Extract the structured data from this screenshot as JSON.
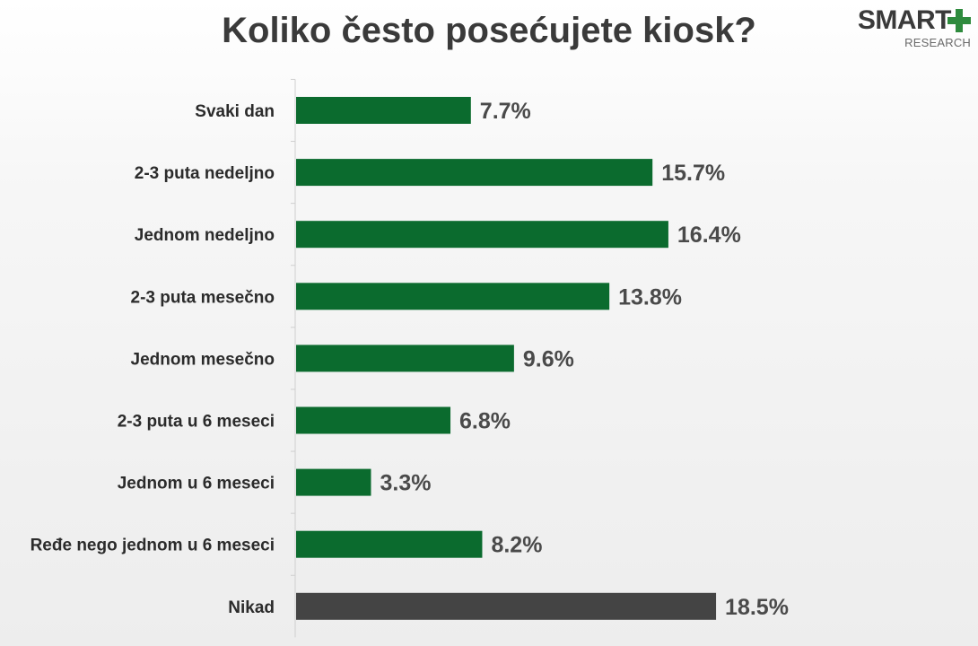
{
  "title": "Koliko često posećujete kiosk?",
  "logo": {
    "main": "SMART",
    "sub": "RESEARCH",
    "plus_color": "#2e8b3d"
  },
  "chart_data": {
    "type": "bar",
    "orientation": "horizontal",
    "title": "Koliko često posećujete kiosk?",
    "categories": [
      "Svaki dan",
      "2-3 puta nedeljno",
      "Jednom nedeljno",
      "2-3 puta mesečno",
      "Jednom mesečno",
      "2-3 puta u 6 meseci",
      "Jednom u 6 meseci",
      "Ređe nego jednom u 6 meseci",
      "Nikad"
    ],
    "values": [
      7.7,
      15.7,
      16.4,
      13.8,
      9.6,
      6.8,
      3.3,
      8.2,
      18.5
    ],
    "value_labels": [
      "7.7%",
      "15.7%",
      "16.4%",
      "13.8%",
      "9.6%",
      "6.8%",
      "3.3%",
      "8.2%",
      "18.5%"
    ],
    "bar_colors": [
      "#0b6b2e",
      "#0b6b2e",
      "#0b6b2e",
      "#0b6b2e",
      "#0b6b2e",
      "#0b6b2e",
      "#0b6b2e",
      "#0b6b2e",
      "#444444"
    ],
    "xlabel": "",
    "ylabel": "",
    "grid": false,
    "legend": "none"
  }
}
